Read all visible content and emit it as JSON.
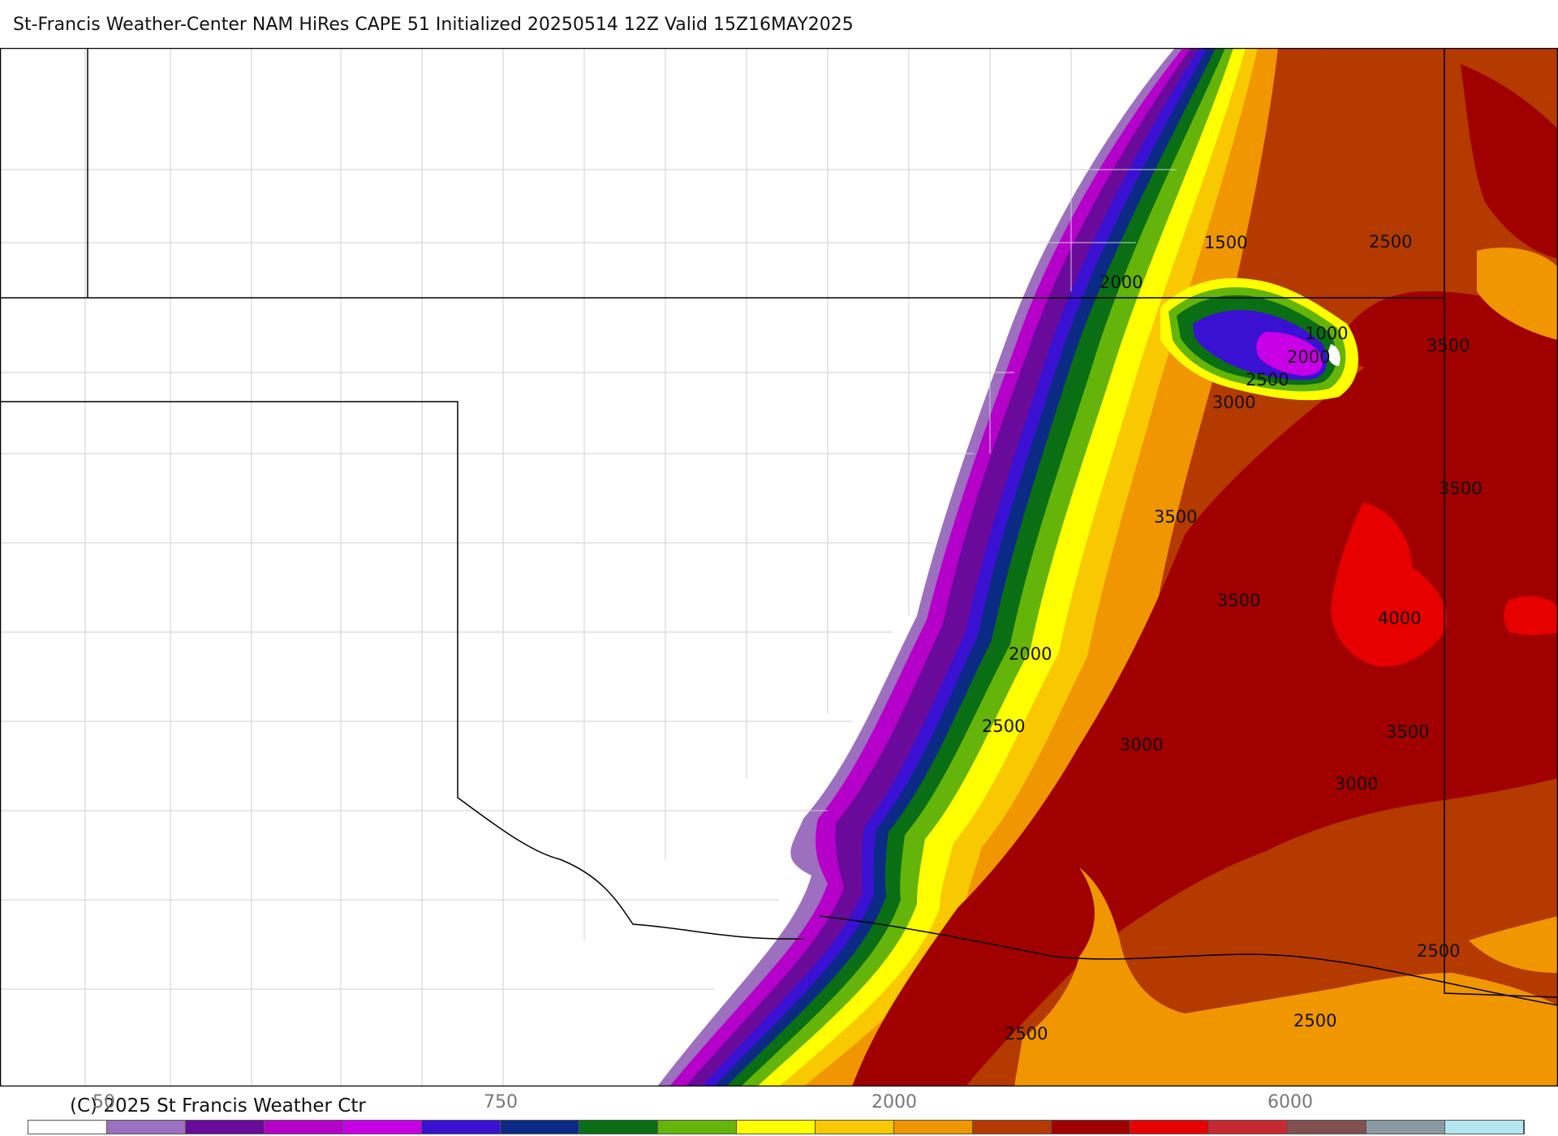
{
  "header": {
    "title": "St-Francis Weather-Center NAM HiRes CAPE  51 Initialized 20250514 12Z Valid 15Z16MAY2025"
  },
  "footer": {
    "copyright": "(C) 2025 St Francis Weather Ctr"
  },
  "colorbar": {
    "labels": [
      "50",
      "750",
      "2000",
      "6000"
    ],
    "colors": [
      "#ffffff",
      "#9c6fbf",
      "#6a0a9a",
      "#b400c8",
      "#c800e6",
      "#3a10d2",
      "#0a2a86",
      "#0a6e14",
      "#64b40a",
      "#ffff00",
      "#f8c800",
      "#f09600",
      "#b43a00",
      "#a00000",
      "#e60000",
      "#c82832",
      "#82504e",
      "#8a9aa2",
      "#b4e6f0"
    ]
  },
  "map": {
    "contour_labels": [
      {
        "text": "1500"
      },
      {
        "text": "2000"
      },
      {
        "text": "2500"
      },
      {
        "text": "1000"
      },
      {
        "text": "2000"
      },
      {
        "text": "2500"
      },
      {
        "text": "3000"
      },
      {
        "text": "3500"
      },
      {
        "text": "3500"
      },
      {
        "text": "3500"
      },
      {
        "text": "3500"
      },
      {
        "text": "4000"
      },
      {
        "text": "2000"
      },
      {
        "text": "2500"
      },
      {
        "text": "3000"
      },
      {
        "text": "3500"
      },
      {
        "text": "3000"
      },
      {
        "text": "2500"
      },
      {
        "text": "2500"
      },
      {
        "text": "2500"
      }
    ]
  }
}
